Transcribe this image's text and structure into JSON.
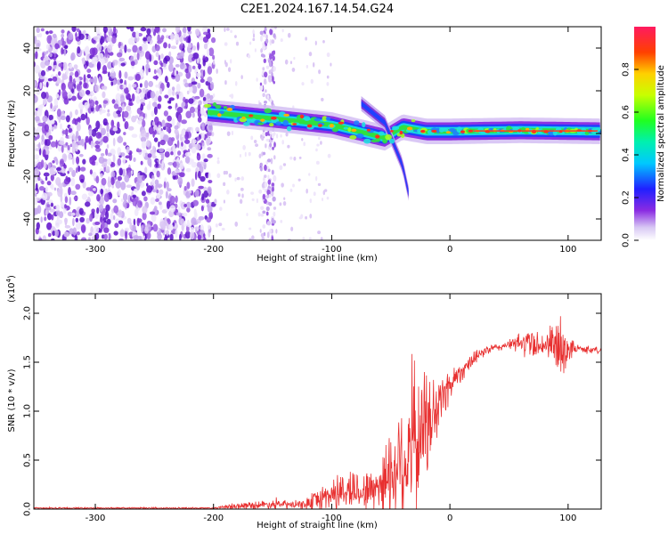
{
  "title": "C2E1.2024.167.14.54.G24",
  "colors": {
    "signal": "#e83030",
    "spectrogram_low": "#7b2fd6",
    "spectrogram_mid": "#18e0e0",
    "spectrogram_high": "#e82020"
  },
  "chart_data": [
    {
      "type": "heatmap",
      "xlabel": "Height of straight line (km)",
      "ylabel": "Frequency (Hz)",
      "xlim": [
        -352,
        128
      ],
      "ylim": [
        -50,
        50
      ],
      "xticks": [
        -300,
        -200,
        -100,
        0,
        100
      ],
      "xtick_labels": [
        "-300",
        "-200",
        "-100",
        "0",
        "100"
      ],
      "yticks": [
        -40,
        -20,
        0,
        20,
        40
      ],
      "ytick_labels": [
        "-40",
        "-20",
        "0",
        "20",
        "40"
      ],
      "noise_region_x": [
        -352,
        -200
      ],
      "noise_stripe_x": [
        -160,
        -148
      ],
      "signal_track": [
        {
          "x": -205,
          "y": 10
        },
        {
          "x": -150,
          "y": 7
        },
        {
          "x": -100,
          "y": 4
        },
        {
          "x": -55,
          "y": -2
        },
        {
          "x": -40,
          "y": 3
        },
        {
          "x": -20,
          "y": 1
        },
        {
          "x": 0,
          "y": 1
        },
        {
          "x": 60,
          "y": 1.5
        },
        {
          "x": 128,
          "y": 1
        }
      ],
      "branch_track": [
        {
          "x": -75,
          "y": 14
        },
        {
          "x": -55,
          "y": 5
        },
        {
          "x": -40,
          "y": -15
        },
        {
          "x": -35,
          "y": -28
        }
      ],
      "colorbar": {
        "label": "Normalized spectral amplitude",
        "range": [
          0,
          1
        ],
        "ticks": [
          0.0,
          0.2,
          0.4,
          0.6,
          0.8
        ],
        "tick_labels": [
          "0.0",
          "0.2",
          "0.4",
          "0.6",
          "0.8"
        ]
      }
    },
    {
      "type": "line",
      "xlabel": "Height of straight line (km)",
      "ylabel": "SNR (10 * v/v)",
      "scale_label": "(x10",
      "scale_exponent": "4",
      "scale_close": ")",
      "xlim": [
        -352,
        128
      ],
      "ylim": [
        0,
        2.2
      ],
      "xticks": [
        -300,
        -200,
        -100,
        0,
        100
      ],
      "xtick_labels": [
        "-300",
        "-200",
        "-100",
        "0",
        "100"
      ],
      "yticks": [
        0.0,
        0.5,
        1.0,
        1.5,
        2.0
      ],
      "ytick_labels": [
        "0.0",
        "0.5",
        "1.0",
        "1.5",
        "2.0"
      ],
      "series": [
        {
          "color": "#e83030",
          "envelope": [
            {
              "x": -352,
              "base": 0.01,
              "noise": 0.01
            },
            {
              "x": -200,
              "base": 0.01,
              "noise": 0.01
            },
            {
              "x": -180,
              "base": 0.03,
              "noise": 0.04
            },
            {
              "x": -150,
              "base": 0.05,
              "noise": 0.06
            },
            {
              "x": -125,
              "base": 0.04,
              "noise": 0.05
            },
            {
              "x": -100,
              "base": 0.15,
              "noise": 0.22
            },
            {
              "x": -85,
              "base": 0.2,
              "noise": 0.28
            },
            {
              "x": -70,
              "base": 0.18,
              "noise": 0.25
            },
            {
              "x": -55,
              "base": 0.3,
              "noise": 0.45
            },
            {
              "x": -40,
              "base": 0.5,
              "noise": 1.0
            },
            {
              "x": -25,
              "base": 0.75,
              "noise": 0.85
            },
            {
              "x": -10,
              "base": 1.05,
              "noise": 0.45
            },
            {
              "x": 0,
              "base": 1.28,
              "noise": 0.2
            },
            {
              "x": 15,
              "base": 1.48,
              "noise": 0.1
            },
            {
              "x": 30,
              "base": 1.62,
              "noise": 0.06
            },
            {
              "x": 50,
              "base": 1.68,
              "noise": 0.05
            },
            {
              "x": 65,
              "base": 1.7,
              "noise": 0.2
            },
            {
              "x": 80,
              "base": 1.68,
              "noise": 0.15
            },
            {
              "x": 95,
              "base": 1.65,
              "noise": 0.45
            },
            {
              "x": 105,
              "base": 1.64,
              "noise": 0.06
            },
            {
              "x": 128,
              "base": 1.62,
              "noise": 0.04
            }
          ]
        }
      ]
    }
  ]
}
